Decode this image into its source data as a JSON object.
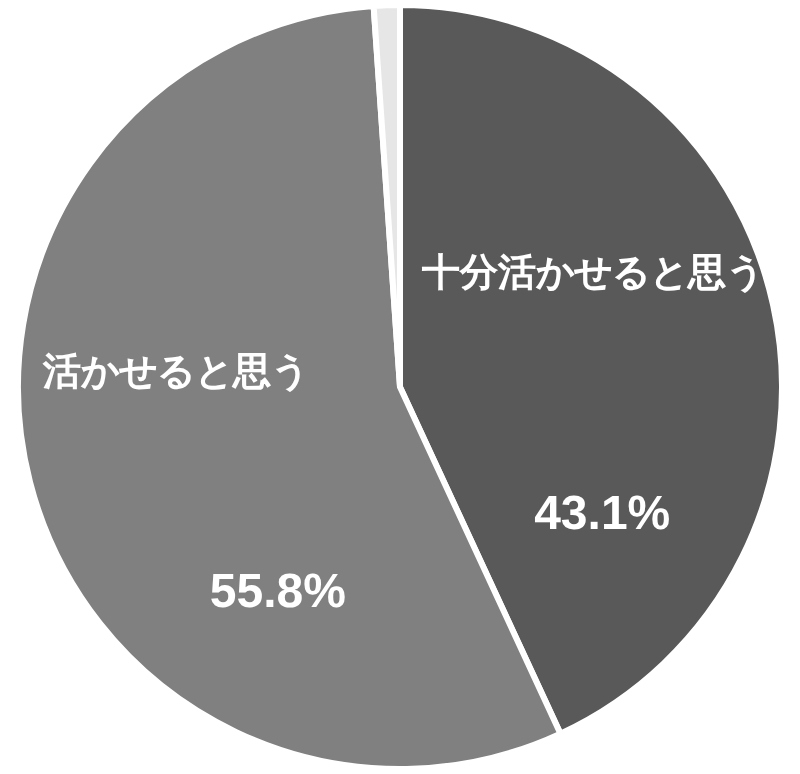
{
  "chart_data": {
    "type": "pie",
    "categories": [
      "十分活かせると思う",
      "活かせると思う",
      null
    ],
    "values": [
      43.1,
      55.8,
      1.1
    ],
    "value_labels": [
      "43.1%",
      "55.8%",
      null
    ],
    "colors": [
      "#595959",
      "#808080",
      "#e6e6e6"
    ]
  }
}
